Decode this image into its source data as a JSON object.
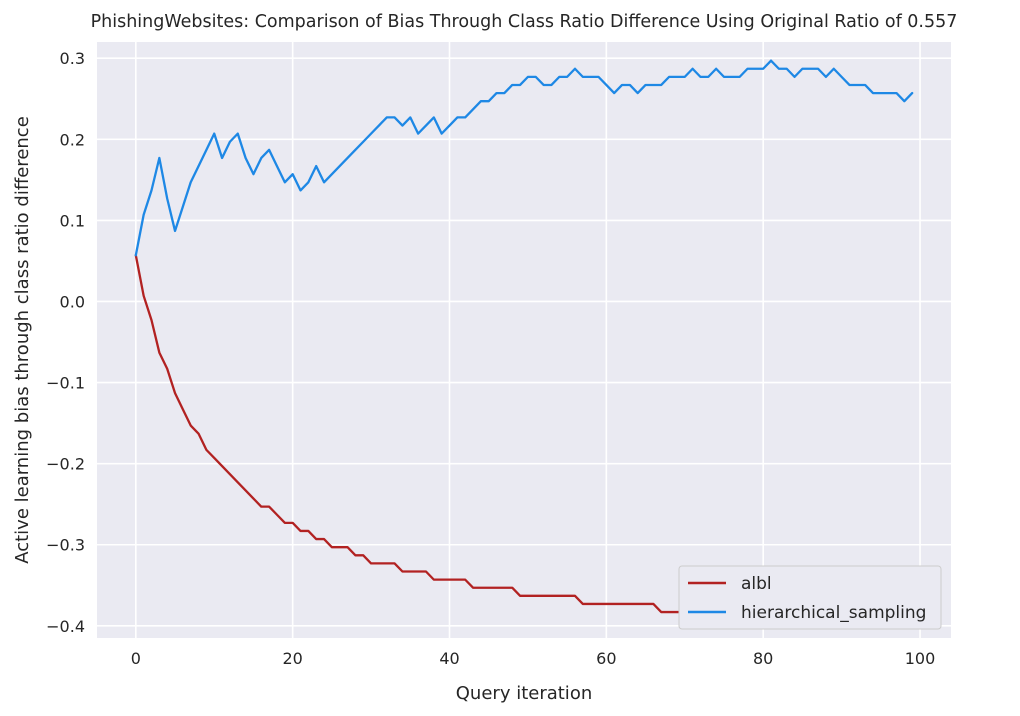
{
  "chart_data": {
    "type": "line",
    "title": "PhishingWebsites: Comparison of Bias Through Class Ratio Difference Using Original Ratio of 0.557",
    "xlabel": "Query iteration",
    "ylabel": "Active learning bias through class ratio difference",
    "xlim": [
      -4.95,
      103.95
    ],
    "ylim": [
      -0.415,
      0.32
    ],
    "xticks": [
      0,
      20,
      40,
      60,
      80,
      100
    ],
    "yticks": [
      -0.4,
      -0.3,
      -0.2,
      -0.1,
      0.0,
      0.1,
      0.2,
      0.3
    ],
    "xtick_labels": [
      "0",
      "20",
      "40",
      "60",
      "80",
      "100"
    ],
    "ytick_labels": [
      "−0.4",
      "−0.3",
      "−0.2",
      "−0.1",
      "0.0",
      "0.1",
      "0.2",
      "0.3"
    ],
    "grid": true,
    "legend_position": "lower right",
    "x": [
      0,
      1,
      2,
      3,
      4,
      5,
      6,
      7,
      8,
      9,
      10,
      11,
      12,
      13,
      14,
      15,
      16,
      17,
      18,
      19,
      20,
      21,
      22,
      23,
      24,
      25,
      26,
      27,
      28,
      29,
      30,
      31,
      32,
      33,
      34,
      35,
      36,
      37,
      38,
      39,
      40,
      41,
      42,
      43,
      44,
      45,
      46,
      47,
      48,
      49,
      50,
      51,
      52,
      53,
      54,
      55,
      56,
      57,
      58,
      59,
      60,
      61,
      62,
      63,
      64,
      65,
      66,
      67,
      68,
      69,
      70,
      71,
      72,
      73,
      74,
      75,
      76,
      77,
      78,
      79,
      80,
      81,
      82,
      83,
      84,
      85,
      86,
      87,
      88,
      89,
      90,
      91,
      92,
      93,
      94,
      95,
      96,
      97,
      98,
      99
    ],
    "series": [
      {
        "name": "albl",
        "color": "#b22222",
        "values": [
          0.057,
          0.007,
          -0.023,
          -0.063,
          -0.083,
          -0.113,
          -0.133,
          -0.153,
          -0.163,
          -0.183,
          -0.193,
          -0.203,
          -0.213,
          -0.223,
          -0.233,
          -0.243,
          -0.253,
          -0.253,
          -0.263,
          -0.273,
          -0.273,
          -0.283,
          -0.283,
          -0.293,
          -0.293,
          -0.303,
          -0.303,
          -0.303,
          -0.313,
          -0.313,
          -0.323,
          -0.323,
          -0.323,
          -0.323,
          -0.333,
          -0.333,
          -0.333,
          -0.333,
          -0.343,
          -0.343,
          -0.343,
          -0.343,
          -0.343,
          -0.353,
          -0.353,
          -0.353,
          -0.353,
          -0.353,
          -0.353,
          -0.363,
          -0.363,
          -0.363,
          -0.363,
          -0.363,
          -0.363,
          -0.363,
          -0.363,
          -0.373,
          -0.373,
          -0.373,
          -0.373,
          -0.373,
          -0.373,
          -0.373,
          -0.373,
          -0.373,
          -0.373,
          -0.383,
          -0.383,
          -0.383,
          -0.383,
          -0.383,
          -0.383,
          -0.373,
          -0.373,
          -0.373,
          -0.373,
          -0.373,
          -0.373,
          -0.373,
          -0.373,
          -0.373,
          -0.373,
          -0.373,
          -0.373,
          -0.373,
          -0.373,
          -0.373,
          -0.373,
          -0.373,
          -0.373,
          -0.373,
          -0.373,
          -0.373,
          -0.373,
          -0.373,
          -0.373,
          -0.373,
          -0.373,
          -0.373
        ]
      },
      {
        "name": "hierarchical_sampling",
        "color": "#1e88e5",
        "values": [
          0.057,
          0.107,
          0.137,
          0.177,
          0.127,
          0.087,
          0.117,
          0.147,
          0.167,
          0.187,
          0.207,
          0.177,
          0.197,
          0.207,
          0.177,
          0.157,
          0.177,
          0.187,
          0.167,
          0.147,
          0.157,
          0.137,
          0.147,
          0.167,
          0.147,
          0.157,
          0.167,
          0.177,
          0.187,
          0.197,
          0.207,
          0.217,
          0.227,
          0.227,
          0.217,
          0.227,
          0.207,
          0.217,
          0.227,
          0.207,
          0.217,
          0.227,
          0.227,
          0.237,
          0.247,
          0.247,
          0.257,
          0.257,
          0.267,
          0.267,
          0.277,
          0.277,
          0.267,
          0.267,
          0.277,
          0.277,
          0.287,
          0.277,
          0.277,
          0.277,
          0.267,
          0.257,
          0.267,
          0.267,
          0.257,
          0.267,
          0.267,
          0.267,
          0.277,
          0.277,
          0.277,
          0.287,
          0.277,
          0.277,
          0.287,
          0.277,
          0.277,
          0.277,
          0.287,
          0.287,
          0.287,
          0.297,
          0.287,
          0.287,
          0.277,
          0.287,
          0.287,
          0.287,
          0.277,
          0.287,
          0.277,
          0.267,
          0.267,
          0.267,
          0.257,
          0.257,
          0.257,
          0.257,
          0.247,
          0.257
        ]
      }
    ]
  }
}
